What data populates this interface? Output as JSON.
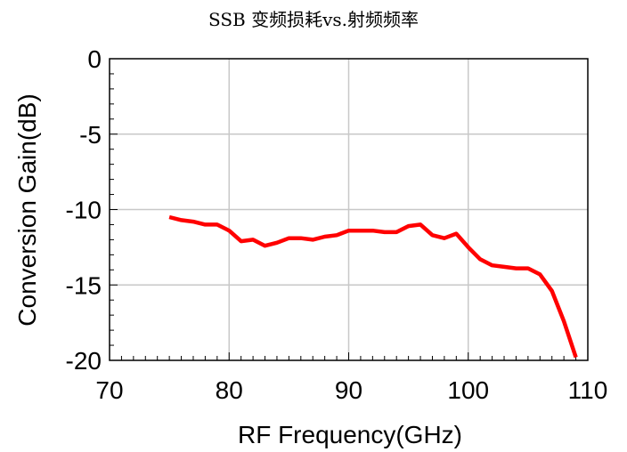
{
  "chart_data": {
    "type": "line",
    "title": "SSB 变频损耗vs.射频频率",
    "xlabel": "RF Frequency(GHz)",
    "ylabel": "Conversion Gain(dB)",
    "xlim": [
      70,
      110
    ],
    "ylim": [
      -20,
      0
    ],
    "x_ticks": [
      70,
      80,
      90,
      100,
      110
    ],
    "y_ticks": [
      0,
      -5,
      -10,
      -15,
      -20
    ],
    "x_tick_labels": [
      "70",
      "80",
      "90",
      "100",
      "110"
    ],
    "y_tick_labels": [
      "0",
      "-5",
      "-10",
      "-15",
      "-20"
    ],
    "grid": true,
    "line_color": "#ff0000",
    "series": [
      {
        "x": [
          75,
          76,
          77,
          78,
          79,
          80,
          81,
          82,
          83,
          84,
          85,
          86,
          87,
          88,
          89,
          90,
          91,
          92,
          93,
          94,
          95,
          96,
          97,
          98,
          99,
          100,
          101,
          102,
          103,
          104,
          105,
          106,
          107,
          108,
          109
        ],
        "values": [
          -10.5,
          -10.7,
          -10.8,
          -11.0,
          -11.0,
          -11.4,
          -12.1,
          -12.0,
          -12.4,
          -12.2,
          -11.9,
          -11.9,
          -12.0,
          -11.8,
          -11.7,
          -11.4,
          -11.4,
          -11.4,
          -11.5,
          -11.5,
          -11.1,
          -11.0,
          -11.7,
          -11.9,
          -11.6,
          -12.5,
          -13.3,
          -13.7,
          -13.8,
          -13.9,
          -13.9,
          -14.3,
          -15.4,
          -17.4,
          -19.8
        ]
      }
    ]
  }
}
